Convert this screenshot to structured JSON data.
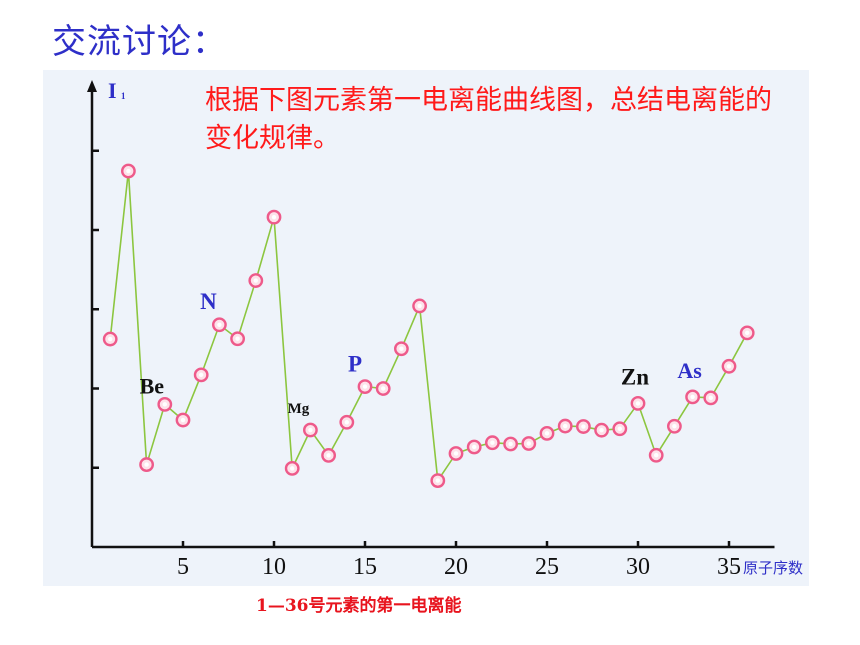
{
  "slide": {
    "title": "交流讨论：",
    "question": "根据下图元素第一电离能曲线图，总结电离能的变化规律。",
    "caption": "1—36号元素的第一电离能"
  },
  "colors": {
    "title": "#2e2fc8",
    "question": "#ff1a1a",
    "caption": "#e8141e",
    "panel": "#eef3fa",
    "line": "#8cc63f",
    "marker_stroke": "#ee5a8a",
    "marker_fill": "#fde2ea",
    "label_blue": "#2e2fc8",
    "label_black": "#111111"
  },
  "chart_data": {
    "type": "line",
    "title": "1—36号元素的第一电离能",
    "ylabel": "I₁",
    "ylabel_main": "I",
    "ylabel_sub": "1",
    "xlabel": "原子序数",
    "x_ticks": [
      5,
      10,
      15,
      20,
      25,
      30,
      35
    ],
    "xlim": [
      0,
      37.5
    ],
    "ylim": [
      0,
      2700
    ],
    "y_ticks": [
      500,
      1000,
      1500,
      2000,
      2500
    ],
    "y_tick_labels_shown": false,
    "grid": false,
    "legend": "none",
    "series": [
      {
        "x": [
          1,
          2,
          3,
          4,
          5,
          6,
          7,
          8,
          9,
          10,
          11,
          12,
          13,
          14,
          15,
          16,
          17,
          18,
          19,
          20,
          21,
          22,
          23,
          24,
          25,
          26,
          27,
          28,
          29,
          30,
          31,
          32,
          33,
          34,
          35,
          36
        ],
        "y": [
          1312,
          2372,
          520,
          900,
          801,
          1086,
          1402,
          1314,
          1681,
          2081,
          496,
          738,
          578,
          787,
          1012,
          1000,
          1251,
          1521,
          419,
          590,
          631,
          658,
          650,
          653,
          717,
          763,
          760,
          737,
          746,
          906,
          579,
          762,
          947,
          941,
          1140,
          1351
        ]
      }
    ],
    "annotations": [
      {
        "text": "Be",
        "x": 4,
        "color": "#111111"
      },
      {
        "text": "N",
        "x": 7,
        "color": "#2e2fc8"
      },
      {
        "text": "Mg",
        "x": 12,
        "color": "#111111"
      },
      {
        "text": "P",
        "x": 15,
        "color": "#2e2fc8"
      },
      {
        "text": "Zn",
        "x": 30,
        "color": "#111111"
      },
      {
        "text": "As",
        "x": 33,
        "color": "#2e2fc8"
      }
    ]
  }
}
